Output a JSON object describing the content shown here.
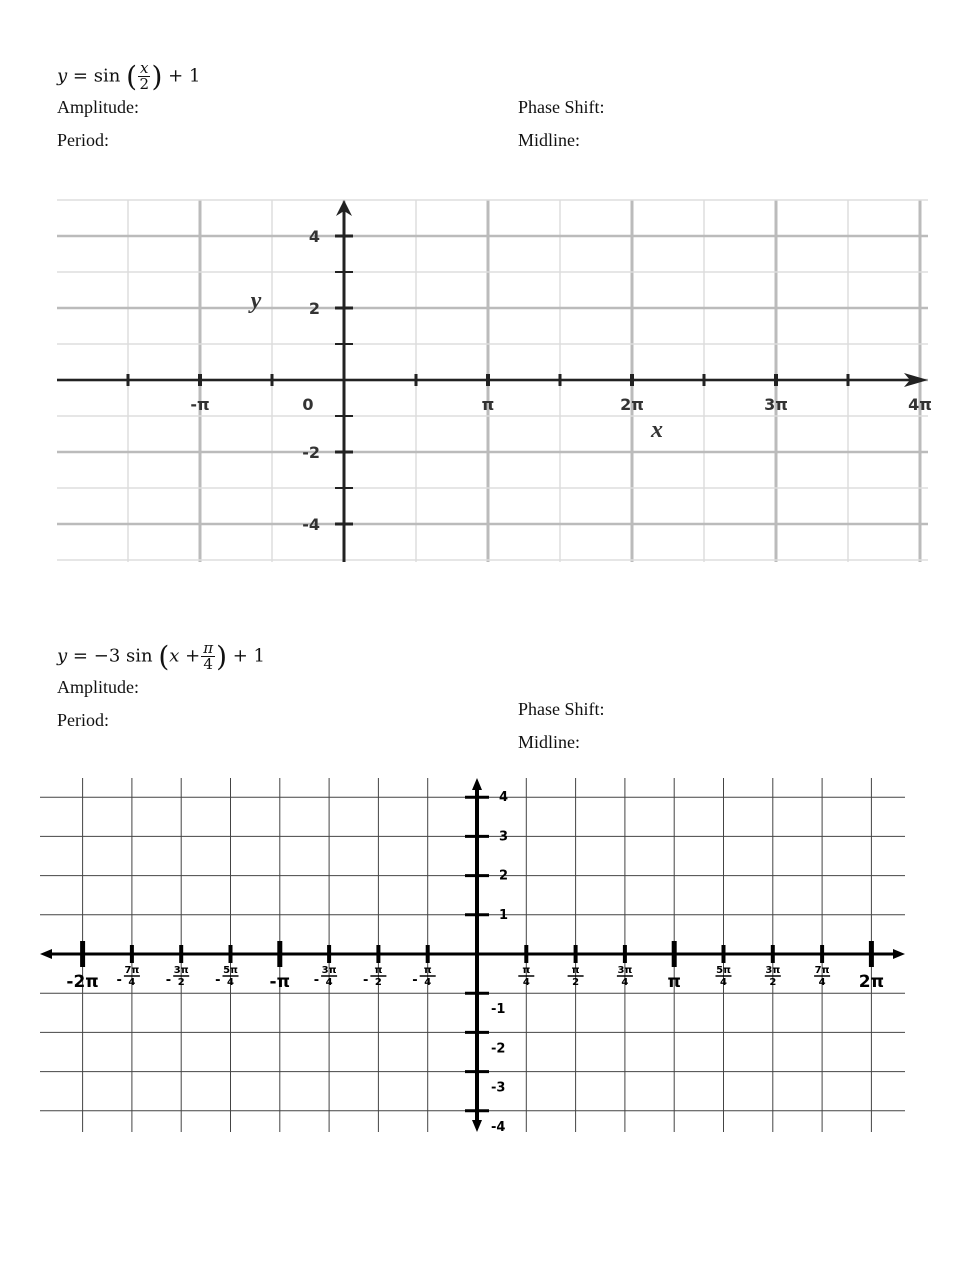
{
  "problems": [
    {
      "equation": {
        "lhs": "y",
        "eq": "=",
        "fn": "sin",
        "num": "x",
        "den": "2",
        "tail": "+ 1"
      },
      "amplitude_label": "Amplitude:",
      "period_label": "Period:",
      "phase_shift_label": "Phase Shift:",
      "midline_label": "Midline:",
      "graph": {
        "x_axis_label": "x",
        "y_axis_label": "y",
        "x_tick_labels": [
          "-π",
          "π",
          "2π",
          "3π",
          "4π"
        ],
        "origin_label": "0",
        "y_tick_labels": [
          "4",
          "2",
          "-2",
          "-4"
        ]
      }
    },
    {
      "equation": {
        "lhs": "y",
        "eq": "=",
        "coef": "−3 sin",
        "inner": "x +",
        "num": "π",
        "den": "4",
        "tail": "+ 1"
      },
      "amplitude_label": "Amplitude:",
      "period_label": "Period:",
      "phase_shift_label": "Phase Shift:",
      "midline_label": "Midline:",
      "graph": {
        "x_tick_labels": [
          {
            "sign": "-",
            "text": "2π"
          },
          {
            "sign": "-",
            "num": "7π",
            "den": "4"
          },
          {
            "sign": "-",
            "num": "3π",
            "den": "2"
          },
          {
            "sign": "-",
            "num": "5π",
            "den": "4"
          },
          {
            "sign": "-",
            "text": "π"
          },
          {
            "sign": "-",
            "num": "3π",
            "den": "4"
          },
          {
            "sign": "-",
            "num": "π",
            "den": "2"
          },
          {
            "sign": "-",
            "num": "π",
            "den": "4"
          },
          {
            "sign": "",
            "num": "π",
            "den": "4"
          },
          {
            "sign": "",
            "num": "π",
            "den": "2"
          },
          {
            "sign": "",
            "num": "3π",
            "den": "4"
          },
          {
            "sign": "",
            "text": "π"
          },
          {
            "sign": "",
            "num": "5π",
            "den": "4"
          },
          {
            "sign": "",
            "num": "3π",
            "den": "2"
          },
          {
            "sign": "",
            "num": "7π",
            "den": "4"
          },
          {
            "sign": "",
            "text": "2π"
          }
        ],
        "y_tick_labels": [
          "4",
          "3",
          "2",
          "1",
          "-1",
          "-2",
          "-3",
          "-4"
        ]
      }
    }
  ]
}
